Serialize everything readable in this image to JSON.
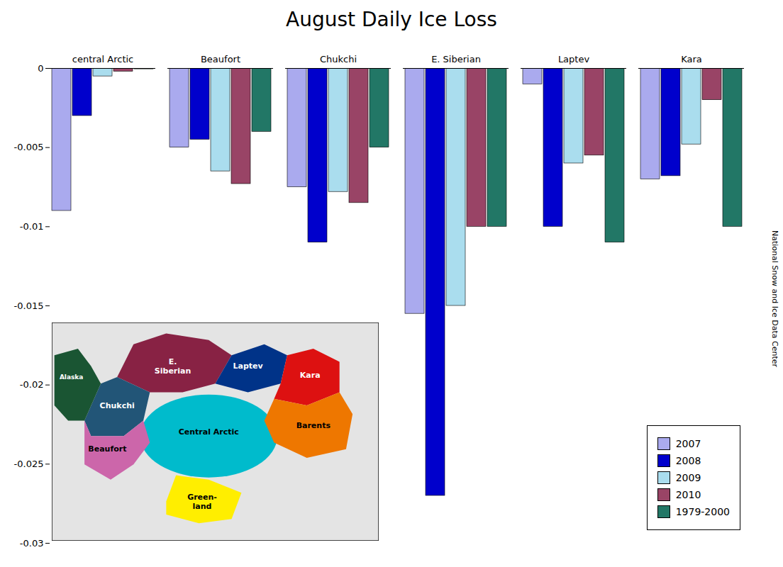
{
  "chart_data": {
    "type": "bar",
    "title": "August Daily Ice Loss",
    "categories": [
      "central Arctic",
      "Beaufort",
      "Chukchi",
      "E. Siberian",
      "Laptev",
      "Kara"
    ],
    "series": [
      {
        "name": "2007",
        "color": "#aaaaee",
        "values": [
          -0.009,
          -0.005,
          -0.0075,
          -0.0155,
          -0.001,
          -0.007
        ]
      },
      {
        "name": "2008",
        "color": "#0000cc",
        "values": [
          -0.003,
          -0.0045,
          -0.011,
          -0.027,
          -0.01,
          -0.0068
        ]
      },
      {
        "name": "2009",
        "color": "#aaddee",
        "values": [
          -0.0005,
          -0.0065,
          -0.0078,
          -0.015,
          -0.006,
          -0.0048
        ]
      },
      {
        "name": "2010",
        "color": "#994466",
        "values": [
          -0.0002,
          -0.0073,
          -0.0085,
          -0.01,
          -0.0055,
          -0.002
        ]
      },
      {
        "name": "1979-2000",
        "color": "#227766",
        "values": [
          -5e-05,
          -0.004,
          -0.005,
          -0.01,
          -0.011,
          -0.01
        ]
      }
    ],
    "ylim": [
      -0.03,
      0
    ],
    "yticks": [
      0,
      -0.005,
      -0.01,
      -0.015,
      -0.02,
      -0.025,
      -0.03
    ],
    "legend": "lower right",
    "annotations": [
      {
        "text": "National Snow and Ice Data Center"
      },
      {
        "text": "Central Arctic",
        "color": "#00bbcc"
      },
      {
        "text": "E.\nSiberian",
        "color": "#882244"
      },
      {
        "text": "Laptev",
        "color": "#003388"
      },
      {
        "text": "Chukchi",
        "color": "#225577"
      },
      {
        "text": "Beaufort",
        "color": "#cc66aa"
      },
      {
        "text": "Kara",
        "color": "#dd1111"
      },
      {
        "text": "Barents",
        "color": "#ee7700"
      },
      {
        "text": "Green-\nland",
        "color": "#ffee00"
      },
      {
        "text": "Alaska",
        "color": "#1a5533"
      }
    ]
  }
}
